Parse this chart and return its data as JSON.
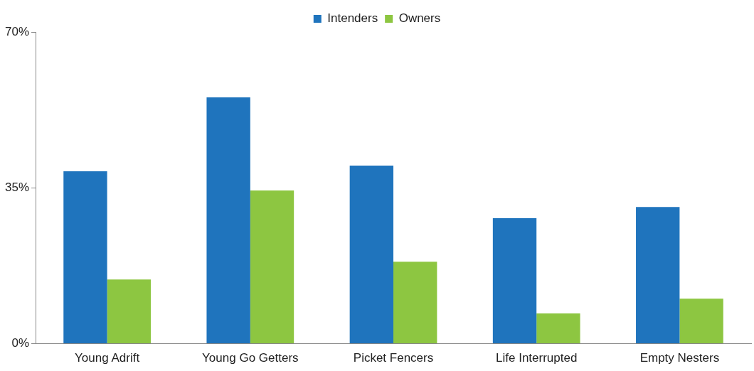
{
  "chart_data": {
    "type": "bar",
    "categories": [
      "Young Adrift",
      "Young Go Getters",
      "Picket Fencers",
      "Life Interrupted",
      "Empty Nesters"
    ],
    "series": [
      {
        "name": "Intenders",
        "color": "#1f74bd",
        "values": [
          38.7,
          55.3,
          40.0,
          28.2,
          30.7
        ]
      },
      {
        "name": "Owners",
        "color": "#8dc641",
        "values": [
          14.4,
          34.4,
          18.4,
          6.8,
          10.1
        ]
      }
    ],
    "ylim": [
      0,
      70
    ],
    "yticks": [
      {
        "value": 0,
        "label": "0%"
      },
      {
        "value": 35,
        "label": "35%"
      },
      {
        "value": 70,
        "label": "70%"
      }
    ],
    "grid": false,
    "legend": "top"
  }
}
